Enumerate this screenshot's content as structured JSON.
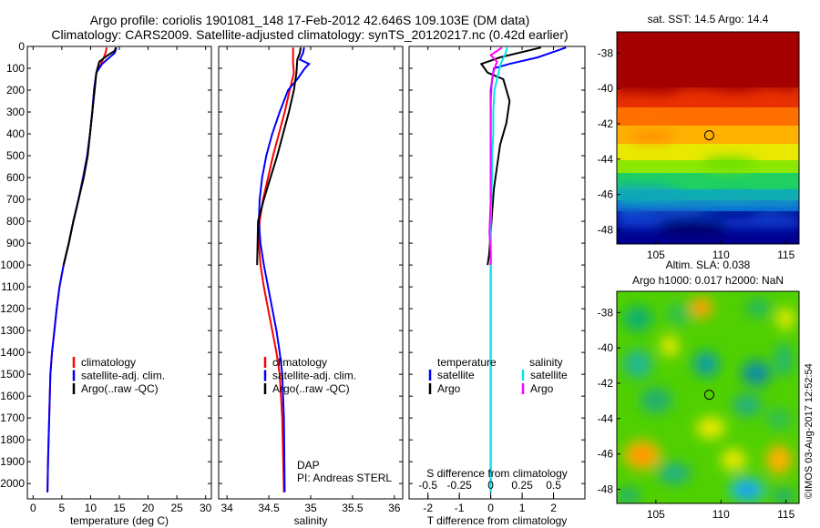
{
  "header": {
    "line1": "Argo profile: coriolis 1901081_148 17-Feb-2012 42.646S 109.103E (DM data)",
    "line2": "Climatology: CARS2009. Satellite-adjusted climatology: synTS_20120217.nc (0.42d earlier)"
  },
  "colors": {
    "climatology": "#ff0000",
    "satellite": "#0000ff",
    "argo": "#000000",
    "sal_satellite": "#00e5ee",
    "sal_argo": "#ff00ff"
  },
  "chart_data": [
    {
      "type": "line",
      "id": "temperature",
      "xlabel": "temperature (deg C)",
      "xlim": [
        -1,
        31
      ],
      "xticks": [
        0,
        5,
        10,
        15,
        20,
        25,
        30
      ],
      "ylim": [
        2070,
        0
      ],
      "yticks": [
        0,
        100,
        200,
        300,
        400,
        500,
        600,
        700,
        800,
        900,
        1000,
        1100,
        1200,
        1300,
        1400,
        1500,
        1600,
        1700,
        1800,
        1900,
        2000
      ],
      "legend": [
        "climatology",
        "satellite-adj. clim.",
        "Argo(..raw -QC)"
      ],
      "series": [
        {
          "name": "climatology",
          "color": "#ff0000",
          "x": [
            12.8,
            12.6,
            12.3,
            11.8,
            11.0,
            10.6,
            10.3,
            9.9,
            9.4,
            8.7,
            7.9,
            7.0,
            6.2,
            5.3,
            4.6,
            4.1,
            3.7,
            3.3,
            3.0,
            2.8,
            2.6,
            2.5
          ],
          "y": [
            5,
            30,
            50,
            80,
            120,
            200,
            300,
            400,
            500,
            600,
            700,
            800,
            900,
            1000,
            1100,
            1200,
            1300,
            1400,
            1500,
            1700,
            1900,
            2040
          ]
        },
        {
          "name": "satellite-adj. clim.",
          "color": "#0000ff",
          "x": [
            14.5,
            14.2,
            13.3,
            12.0,
            11.0,
            10.6,
            10.3,
            9.9,
            9.4,
            8.7,
            7.9,
            7.0,
            6.2,
            5.3,
            4.6,
            4.1,
            3.7,
            3.3,
            3.0,
            2.8,
            2.6,
            2.5
          ],
          "y": [
            5,
            30,
            50,
            80,
            120,
            200,
            300,
            400,
            500,
            600,
            700,
            800,
            900,
            1000,
            1100,
            1200,
            1300,
            1400,
            1500,
            1700,
            1900,
            2040
          ]
        },
        {
          "name": "Argo(..raw -QC)",
          "color": "#000000",
          "x": [
            14.4,
            14.2,
            13.0,
            11.5,
            11.0,
            10.7,
            10.3,
            9.9,
            9.5,
            8.8,
            7.9,
            7.0,
            6.2,
            5.3
          ],
          "y": [
            5,
            20,
            40,
            70,
            120,
            200,
            300,
            400,
            500,
            600,
            700,
            800,
            900,
            1000
          ]
        }
      ]
    },
    {
      "type": "line",
      "id": "salinity",
      "xlabel": "salinity",
      "xlim": [
        33.9,
        36.1
      ],
      "xticks": [
        34,
        34.5,
        35,
        35.5,
        36
      ],
      "ylim": [
        2070,
        0
      ],
      "legend": [
        "climatology",
        "satellite-adj. clim.",
        "Argo(..raw -QC)"
      ],
      "annotation": [
        "DAP",
        "PI: Andreas STERL"
      ],
      "series": [
        {
          "name": "climatology",
          "color": "#ff0000",
          "x": [
            34.79,
            34.79,
            34.79,
            34.8,
            34.75,
            34.69,
            34.62,
            34.55,
            34.49,
            34.43,
            34.39,
            34.38,
            34.4,
            34.44,
            34.49,
            34.54,
            34.59,
            34.63,
            34.66,
            34.68
          ],
          "y": [
            5,
            50,
            80,
            120,
            200,
            300,
            400,
            500,
            600,
            700,
            800,
            900,
            1000,
            1100,
            1200,
            1300,
            1400,
            1500,
            1700,
            2040
          ]
        },
        {
          "name": "satellite-adj. clim.",
          "color": "#0000ff",
          "x": [
            34.92,
            34.91,
            34.87,
            34.98,
            34.93,
            34.84,
            34.73,
            34.63,
            34.54,
            34.47,
            34.42,
            34.39,
            34.38,
            34.4,
            34.44,
            34.49,
            34.54,
            34.59,
            34.63,
            34.66,
            34.68,
            34.69
          ],
          "y": [
            5,
            30,
            60,
            80,
            100,
            150,
            200,
            300,
            400,
            500,
            600,
            700,
            800,
            900,
            1000,
            1100,
            1200,
            1300,
            1400,
            1500,
            1700,
            2040
          ]
        },
        {
          "name": "Argo(..raw -QC)",
          "color": "#000000",
          "x": [
            34.88,
            34.87,
            34.84,
            34.83,
            34.8,
            34.74,
            34.67,
            34.6,
            34.52,
            34.44,
            34.37,
            34.36
          ],
          "y": [
            5,
            30,
            60,
            120,
            200,
            300,
            400,
            500,
            600,
            700,
            800,
            1000
          ]
        }
      ]
    },
    {
      "type": "line",
      "id": "difference",
      "xlabel": "T difference from climatology",
      "xlabel_top": "S difference from climatology",
      "xlim": [
        -2.6,
        3.0
      ],
      "xticks": [
        -2,
        -1,
        0,
        1,
        2
      ],
      "sticks": [
        -0.5,
        -0.25,
        0,
        0.25,
        0.5
      ],
      "ylim": [
        2070,
        0
      ],
      "legend": {
        "temperature_title": "temperature",
        "salinity_title": "salinity",
        "entries": [
          "satellite",
          "Argo",
          "satellite",
          "Argo"
        ]
      },
      "series": [
        {
          "name": "T satellite",
          "color": "#0000ff",
          "x": [
            2.4,
            2.1,
            1.5,
            0.6,
            0.1,
            0.0,
            0.0,
            0.0,
            0.0,
            0.0,
            0.0,
            0.0,
            0.0,
            0.0
          ],
          "y": [
            5,
            20,
            50,
            80,
            100,
            200,
            400,
            600,
            800,
            1000,
            1200,
            1500,
            1800,
            2040
          ]
        },
        {
          "name": "T Argo",
          "color": "#000000",
          "x": [
            1.6,
            0.3,
            -0.3,
            -0.1,
            0.4,
            0.6,
            0.5,
            0.3,
            0.2,
            0.1,
            0.05,
            0.0,
            -0.05,
            -0.1
          ],
          "y": [
            5,
            50,
            80,
            120,
            150,
            250,
            350,
            450,
            550,
            650,
            750,
            850,
            950,
            1000
          ]
        },
        {
          "name": "S satellite",
          "color": "#00e5ee",
          "x": [
            0.13,
            0.12,
            0.08,
            0.05,
            0.03,
            0.02,
            0.02,
            0.01,
            0.01,
            0.0,
            0.0,
            0.0,
            0.0,
            0.0,
            0.0
          ],
          "y": [
            5,
            30,
            80,
            150,
            200,
            300,
            400,
            500,
            600,
            800,
            1000,
            1200,
            1500,
            1800,
            2040
          ]
        },
        {
          "name": "S Argo",
          "color": "#ff00ff",
          "x": [
            0.09,
            0.0,
            0.05,
            0.03,
            0.01,
            0.0,
            0.0,
            0.0,
            0.0,
            -0.01,
            0.0,
            0.0
          ],
          "y": [
            5,
            40,
            70,
            100,
            150,
            250,
            400,
            550,
            700,
            850,
            950,
            1000
          ]
        }
      ]
    },
    {
      "type": "heatmap",
      "id": "sst-map",
      "title": "sat. SST: 14.5  Argo: 14.4",
      "xlim": [
        102,
        116
      ],
      "ylim": [
        -48.8,
        -36.8
      ],
      "xticks": [
        105,
        110,
        115
      ],
      "yticks": [
        -38,
        -40,
        -42,
        -44,
        -46,
        -48
      ],
      "marker": [
        109.1,
        -42.65
      ]
    },
    {
      "type": "heatmap",
      "id": "sla-map",
      "title": "Altim. SLA: 0.038",
      "subtitle": "Argo h1000: 0.017 h2000: NaN",
      "xlim": [
        102,
        116
      ],
      "ylim": [
        -48.8,
        -36.8
      ],
      "xticks": [
        105,
        110,
        115
      ],
      "yticks": [
        -38,
        -40,
        -42,
        -44,
        -46,
        -48
      ],
      "marker": [
        109.1,
        -42.65
      ]
    }
  ],
  "footer": {
    "stamp": "©IMOS 03-Aug-2017 12:52:54"
  }
}
